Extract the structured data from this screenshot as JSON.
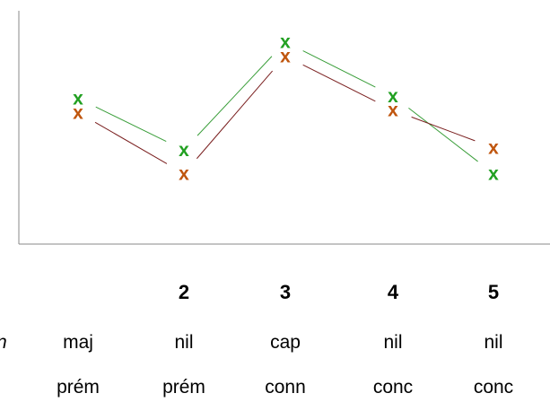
{
  "chart_data": {
    "type": "line",
    "x": [
      1,
      2,
      3,
      4,
      5
    ],
    "tick_labels": [
      "",
      "2",
      "3",
      "4",
      "5"
    ],
    "row_labels": [
      [
        "maj",
        "nil",
        "cap",
        "nil",
        "nil"
      ],
      [
        "prém",
        "prém",
        "conn",
        "conc",
        "conc"
      ]
    ],
    "cut_label": "n",
    "series": [
      {
        "marker": "x",
        "color": "#22a022",
        "values": [
          6.2,
          4.0,
          8.6,
          6.3,
          3.0
        ]
      },
      {
        "marker": "x",
        "color": "#c0560e",
        "values": [
          5.6,
          3.0,
          8.0,
          5.7,
          4.1
        ]
      }
    ],
    "segment_colors": [
      "#3a9e3a",
      "#7a1f1f"
    ],
    "ylim": [
      0,
      10
    ],
    "grid": false,
    "legend": "none"
  }
}
